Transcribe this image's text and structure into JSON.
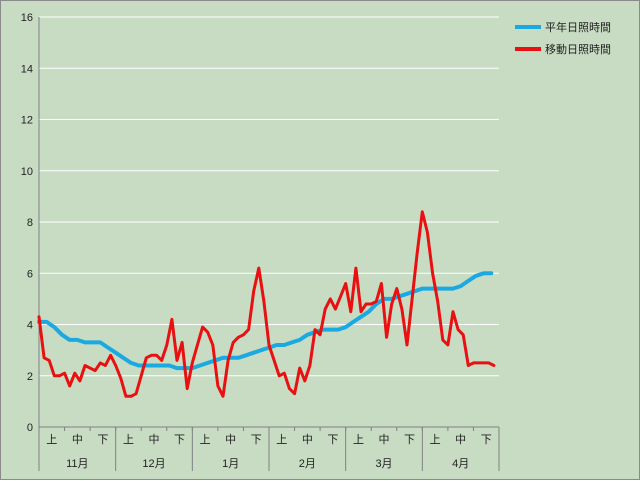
{
  "chart_data": {
    "type": "line",
    "xlabel": "",
    "ylabel": "",
    "ylim": [
      0,
      16
    ],
    "yticks": [
      0,
      2,
      4,
      6,
      8,
      10,
      12,
      14,
      16
    ],
    "grid": true,
    "legend_position": "top-right",
    "months": [
      "11月",
      "12月",
      "1月",
      "2月",
      "3月",
      "4月"
    ],
    "periods": [
      "上",
      "中",
      "下"
    ],
    "x_categories": [
      "11月上",
      "11月中",
      "11月下",
      "12月上",
      "12月中",
      "12月下",
      "1月上",
      "1月中",
      "1月下",
      "2月上",
      "2月中",
      "2月下",
      "3月上",
      "3月中",
      "3月下",
      "4月上",
      "4月中",
      "4月下"
    ],
    "series": [
      {
        "name": "平年日照時間",
        "color": "#1aa9e0",
        "x": [
          0,
          3,
          6,
          9,
          12,
          15,
          18,
          21,
          24,
          27,
          30,
          33,
          36,
          39,
          42,
          45,
          48,
          51,
          54,
          57,
          60,
          63,
          66,
          69,
          72,
          75,
          78,
          81,
          84,
          87,
          90,
          93,
          96,
          99,
          102,
          105,
          108,
          111,
          114,
          117,
          120,
          123,
          126,
          129,
          132,
          135,
          138,
          141,
          144,
          147,
          150,
          153,
          156,
          159,
          162,
          165,
          168,
          171,
          174,
          177
        ],
        "values": [
          4.1,
          4.1,
          3.9,
          3.6,
          3.4,
          3.4,
          3.3,
          3.3,
          3.3,
          3.1,
          2.9,
          2.7,
          2.5,
          2.4,
          2.4,
          2.4,
          2.4,
          2.4,
          2.3,
          2.3,
          2.3,
          2.4,
          2.5,
          2.6,
          2.7,
          2.7,
          2.7,
          2.8,
          2.9,
          3.0,
          3.1,
          3.2,
          3.2,
          3.3,
          3.4,
          3.6,
          3.7,
          3.8,
          3.8,
          3.8,
          3.9,
          4.1,
          4.3,
          4.5,
          4.8,
          5.0,
          5.0,
          5.1,
          5.2,
          5.3,
          5.4,
          5.4,
          5.4,
          5.4,
          5.4,
          5.5,
          5.7,
          5.9,
          6.0,
          6.0
        ]
      },
      {
        "name": "移動日照時間",
        "color": "#e81010",
        "x": [
          0,
          2,
          4,
          6,
          8,
          10,
          12,
          14,
          16,
          18,
          20,
          22,
          24,
          26,
          28,
          30,
          32,
          34,
          36,
          38,
          40,
          42,
          44,
          46,
          48,
          50,
          52,
          54,
          56,
          58,
          60,
          62,
          64,
          66,
          68,
          70,
          72,
          74,
          76,
          78,
          80,
          82,
          84,
          86,
          88,
          90,
          92,
          94,
          96,
          98,
          100,
          102,
          104,
          106,
          108,
          110,
          112,
          114,
          116,
          118,
          120,
          122,
          124,
          126,
          128,
          130,
          132,
          134,
          136,
          138,
          140,
          142,
          144,
          146,
          148,
          150,
          152,
          154,
          156,
          158,
          160,
          162,
          164,
          166,
          168,
          170,
          172,
          174,
          176,
          178
        ],
        "values": [
          4.3,
          2.7,
          2.6,
          2.0,
          2.0,
          2.1,
          1.6,
          2.1,
          1.8,
          2.4,
          2.3,
          2.2,
          2.5,
          2.4,
          2.8,
          2.4,
          1.9,
          1.2,
          1.2,
          1.3,
          2.0,
          2.7,
          2.8,
          2.8,
          2.6,
          3.2,
          4.2,
          2.6,
          3.3,
          1.5,
          2.5,
          3.2,
          3.9,
          3.7,
          3.2,
          1.6,
          1.2,
          2.6,
          3.3,
          3.5,
          3.6,
          3.8,
          5.3,
          6.2,
          4.9,
          3.2,
          2.6,
          2.0,
          2.1,
          1.5,
          1.3,
          2.3,
          1.8,
          2.4,
          3.8,
          3.6,
          4.6,
          5.0,
          4.6,
          5.1,
          5.6,
          4.5,
          6.2,
          4.5,
          4.8,
          4.8,
          4.9,
          5.6,
          3.5,
          4.8,
          5.4,
          4.6,
          3.2,
          5.0,
          6.8,
          8.4,
          7.6,
          6.0,
          4.9,
          3.4,
          3.2,
          4.5,
          3.8,
          3.6,
          2.4,
          2.5,
          2.5,
          2.5,
          2.5,
          2.4
        ]
      }
    ]
  }
}
